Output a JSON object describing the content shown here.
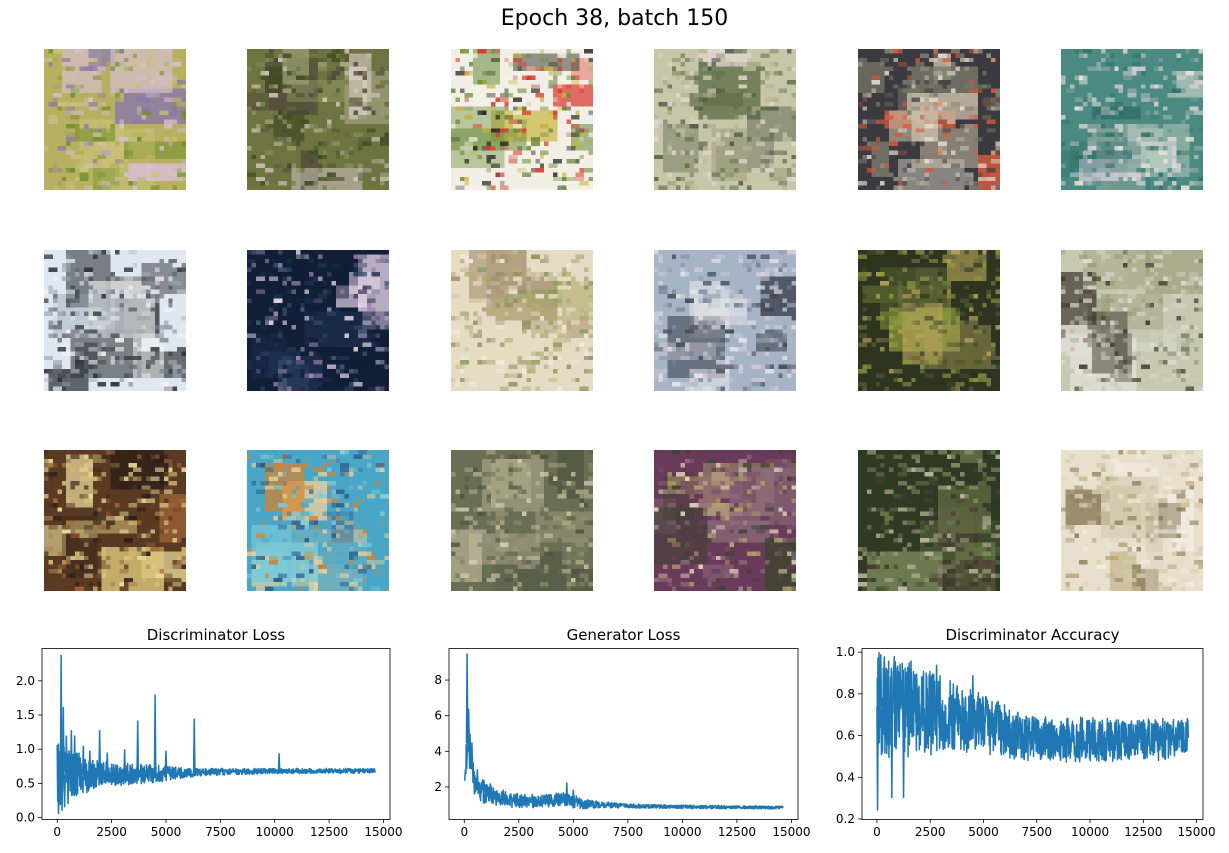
{
  "figure": {
    "suptitle": "Epoch 38, batch 150"
  },
  "samples": {
    "count": 18,
    "rows": 3,
    "cols": 6,
    "palettes": [
      [
        "#b7b060",
        "#6e8f2a",
        "#d9c0d8",
        "#8a7aa6",
        "#c9c27a"
      ],
      [
        "#6d7440",
        "#3e4a22",
        "#d8c9c4",
        "#9aa070",
        "#504a3a"
      ],
      [
        "#f2f0e6",
        "#d8382e",
        "#2a2a22",
        "#c8b43a",
        "#6a8a3a"
      ],
      [
        "#c8c6a8",
        "#5f6e48",
        "#e4d6d2",
        "#4e5a44",
        "#a6a684"
      ],
      [
        "#3a3a40",
        "#c8bca6",
        "#7a7a6a",
        "#d85a3a",
        "#e6e0d0"
      ],
      [
        "#4a8a80",
        "#dcd0e0",
        "#2e6e66",
        "#e8e4dc",
        "#8aa6a0"
      ],
      [
        "#dfe8f0",
        "#4a4e54",
        "#f4f4f4",
        "#2a2e34",
        "#9aa6b4"
      ],
      [
        "#101e36",
        "#e4d2e6",
        "#4a5a7a",
        "#9a7aaa",
        "#1e3050"
      ],
      [
        "#e6dcc4",
        "#b6ae72",
        "#8a9a5a",
        "#f2ece0",
        "#a08a6a"
      ],
      [
        "#a6b4c6",
        "#3e4450",
        "#d8ccd6",
        "#7a8aa0",
        "#e6e6ea"
      ],
      [
        "#2e3420",
        "#8a9a3a",
        "#b6a45a",
        "#4e5a2e",
        "#6a6a4a"
      ],
      [
        "#c6c8b0",
        "#d4d0c4",
        "#3e3a2e",
        "#9aa07a",
        "#e2e0d8"
      ],
      [
        "#5a3a22",
        "#d8c47a",
        "#f0e0a0",
        "#2a1e18",
        "#a86a3a"
      ],
      [
        "#4aa6c6",
        "#e6d0a0",
        "#2a5a8a",
        "#d8822a",
        "#7acad8"
      ],
      [
        "#6a6e54",
        "#d6ccb0",
        "#8a8a6a",
        "#4e5440",
        "#b6b08a"
      ],
      [
        "#6a3a5a",
        "#e6dcc4",
        "#3e4430",
        "#b4a06a",
        "#8a6a7a"
      ],
      [
        "#2e3a24",
        "#8a9a6a",
        "#c6c0a6",
        "#4e3e34",
        "#6a7a4a"
      ],
      [
        "#e8e0cc",
        "#b6a676",
        "#f2ece2",
        "#8a7a5a",
        "#d6ccb4"
      ]
    ]
  },
  "chart_data": [
    {
      "type": "line",
      "title": "Discriminator Loss",
      "xlabel": "",
      "ylabel": "",
      "xlim": [
        -700,
        15300
      ],
      "ylim": [
        -0.02,
        2.48
      ],
      "xticks": [
        0,
        2500,
        5000,
        7500,
        10000,
        12500,
        15000
      ],
      "xtick_labels": [
        "0",
        "2500",
        "5000",
        "7500",
        "10000",
        "12500",
        "15000"
      ],
      "yticks": [
        0.0,
        0.5,
        1.0,
        1.5,
        2.0
      ],
      "ytick_labels": [
        "0.0",
        "0.5",
        "1.0",
        "1.5",
        "2.0"
      ],
      "grid": false,
      "series_color": "#1f77b4",
      "n_points": 14600,
      "x_range": [
        0,
        14600
      ],
      "trend": [
        [
          0,
          0.62
        ],
        [
          300,
          0.62
        ],
        [
          1500,
          0.63
        ],
        [
          3000,
          0.64
        ],
        [
          5000,
          0.65
        ],
        [
          7500,
          0.67
        ],
        [
          10000,
          0.68
        ],
        [
          14600,
          0.685
        ]
      ],
      "band": [
        [
          0,
          0.5
        ],
        [
          300,
          0.42
        ],
        [
          1000,
          0.3
        ],
        [
          2000,
          0.2
        ],
        [
          3000,
          0.17
        ],
        [
          5000,
          0.12
        ],
        [
          6000,
          0.07
        ],
        [
          7500,
          0.05
        ],
        [
          10000,
          0.04
        ],
        [
          14600,
          0.035
        ]
      ],
      "spikes": [
        [
          60,
          0.05
        ],
        [
          180,
          2.38
        ],
        [
          220,
          0.1
        ],
        [
          280,
          1.62
        ],
        [
          340,
          0.15
        ],
        [
          420,
          1.2
        ],
        [
          500,
          0.2
        ],
        [
          650,
          1.28
        ],
        [
          800,
          1.2
        ],
        [
          1000,
          0.95
        ],
        [
          1200,
          1.05
        ],
        [
          1500,
          0.98
        ],
        [
          1700,
          0.55
        ],
        [
          1950,
          1.28
        ],
        [
          2300,
          0.95
        ],
        [
          2600,
          0.52
        ],
        [
          2700,
          0.78
        ],
        [
          3100,
          1.0
        ],
        [
          3700,
          1.42
        ],
        [
          4000,
          0.5
        ],
        [
          4500,
          1.8
        ],
        [
          5000,
          0.98
        ],
        [
          6300,
          1.45
        ],
        [
          10200,
          0.94
        ]
      ]
    },
    {
      "type": "line",
      "title": "Generator Loss",
      "xlabel": "",
      "ylabel": "",
      "xlim": [
        -700,
        15300
      ],
      "ylim": [
        0.2,
        9.8
      ],
      "xticks": [
        0,
        2500,
        5000,
        7500,
        10000,
        12500,
        15000
      ],
      "xtick_labels": [
        "0",
        "2500",
        "5000",
        "7500",
        "10000",
        "12500",
        "15000"
      ],
      "yticks": [
        2,
        4,
        6,
        8
      ],
      "ytick_labels": [
        "2",
        "4",
        "6",
        "8"
      ],
      "grid": false,
      "series_color": "#1f77b4",
      "n_points": 14600,
      "x_range": [
        0,
        14600
      ],
      "trend": [
        [
          0,
          1.8
        ],
        [
          80,
          3.5
        ],
        [
          150,
          4.8
        ],
        [
          300,
          3.4
        ],
        [
          500,
          2.0
        ],
        [
          900,
          1.7
        ],
        [
          2000,
          1.25
        ],
        [
          3000,
          1.2
        ],
        [
          4500,
          1.3
        ],
        [
          5500,
          1.05
        ],
        [
          7000,
          0.95
        ],
        [
          10000,
          0.88
        ],
        [
          14600,
          0.84
        ]
      ],
      "band": [
        [
          0,
          1.0
        ],
        [
          200,
          1.0
        ],
        [
          600,
          0.7
        ],
        [
          1500,
          0.5
        ],
        [
          3000,
          0.38
        ],
        [
          5000,
          0.38
        ],
        [
          6000,
          0.2
        ],
        [
          7500,
          0.12
        ],
        [
          14600,
          0.08
        ]
      ],
      "spikes": [
        [
          130,
          9.5
        ],
        [
          200,
          6.4
        ],
        [
          260,
          5.0
        ],
        [
          350,
          4.5
        ],
        [
          450,
          2.9
        ],
        [
          600,
          3.0
        ],
        [
          900,
          2.4
        ],
        [
          1200,
          2.2
        ],
        [
          4700,
          2.25
        ],
        [
          5000,
          1.85
        ]
      ]
    },
    {
      "type": "line",
      "title": "Discriminator Accuracy",
      "xlabel": "",
      "ylabel": "",
      "xlim": [
        -700,
        15300
      ],
      "ylim": [
        0.2,
        1.02
      ],
      "xticks": [
        0,
        2500,
        5000,
        7500,
        10000,
        12500,
        15000
      ],
      "xtick_labels": [
        "0",
        "2500",
        "5000",
        "7500",
        "10000",
        "12500",
        "15000"
      ],
      "yticks": [
        0.2,
        0.4,
        0.6,
        0.8,
        1.0
      ],
      "ytick_labels": [
        "0.2",
        "0.4",
        "0.6",
        "0.8",
        "1.0"
      ],
      "grid": false,
      "series_color": "#1f77b4",
      "n_points": 14600,
      "x_range": [
        0,
        14600
      ],
      "trend": [
        [
          0,
          0.74
        ],
        [
          500,
          0.74
        ],
        [
          2000,
          0.72
        ],
        [
          3500,
          0.69
        ],
        [
          5000,
          0.66
        ],
        [
          6500,
          0.6
        ],
        [
          8000,
          0.58
        ],
        [
          10000,
          0.58
        ],
        [
          14600,
          0.585
        ]
      ],
      "band": [
        [
          0,
          0.26
        ],
        [
          500,
          0.25
        ],
        [
          2000,
          0.22
        ],
        [
          3500,
          0.17
        ],
        [
          5000,
          0.15
        ],
        [
          6500,
          0.12
        ],
        [
          8000,
          0.11
        ],
        [
          10000,
          0.11
        ],
        [
          14600,
          0.1
        ]
      ],
      "spikes": [
        [
          30,
          0.24
        ],
        [
          100,
          1.0
        ],
        [
          180,
          0.99
        ],
        [
          350,
          0.98
        ],
        [
          700,
          0.3
        ],
        [
          1250,
          0.3
        ],
        [
          1600,
          0.96
        ],
        [
          2800,
          0.94
        ],
        [
          4500,
          0.89
        ]
      ]
    }
  ]
}
